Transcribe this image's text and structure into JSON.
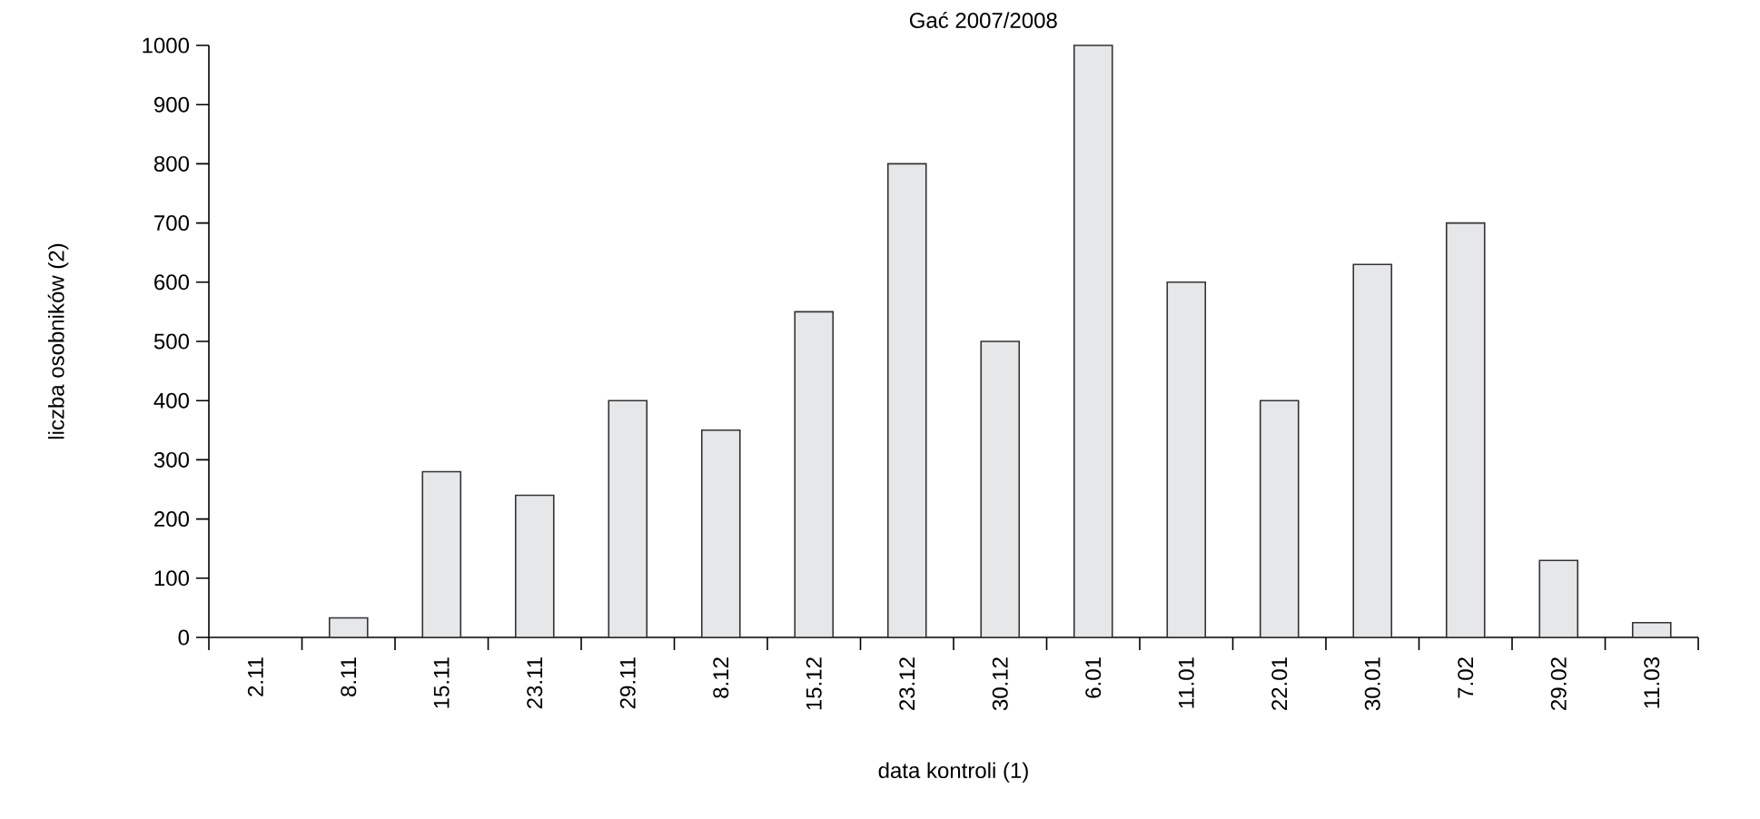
{
  "chart_data": {
    "type": "bar",
    "title": "Gać 2007/2008",
    "xlabel": "data kontroli (1)",
    "ylabel": "liczba osobników (2)",
    "categories": [
      "2.11",
      "8.11",
      "15.11",
      "23.11",
      "29.11",
      "8.12",
      "15.12",
      "23.12",
      "30.12",
      "6.01",
      "11.01",
      "22.01",
      "30.01",
      "7.02",
      "29.02",
      "11.03"
    ],
    "values": [
      null,
      33,
      280,
      240,
      400,
      350,
      550,
      800,
      500,
      1000,
      600,
      400,
      630,
      700,
      130,
      25
    ],
    "color": "#e6e7e9",
    "ylim": [
      0,
      1000
    ],
    "yticks": [
      0,
      100,
      200,
      300,
      400,
      500,
      600,
      700,
      800,
      900,
      1000
    ],
    "grid": false
  }
}
